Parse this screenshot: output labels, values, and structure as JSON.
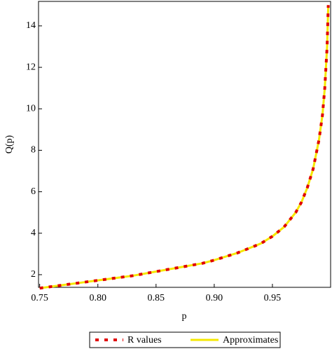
{
  "chart_data": {
    "type": "line",
    "x_label": "p",
    "y_label": "Q(p)",
    "x": [
      0.75,
      0.77,
      0.79,
      0.81,
      0.83,
      0.85,
      0.87,
      0.89,
      0.9,
      0.92,
      0.94,
      0.95,
      0.96,
      0.97,
      0.975,
      0.98,
      0.985,
      0.99,
      0.993,
      0.995,
      0.997,
      0.998
    ],
    "series": [
      {
        "name": "R values",
        "color": "#e00000",
        "dash": true,
        "values": [
          1.35,
          1.5,
          1.65,
          1.8,
          1.95,
          2.15,
          2.35,
          2.55,
          2.7,
          3.05,
          3.5,
          3.85,
          4.3,
          5.0,
          5.5,
          6.2,
          7.1,
          8.5,
          9.7,
          11.0,
          13.0,
          15.0
        ]
      },
      {
        "name": "Approximates",
        "color": "#f5e800",
        "dash": false,
        "values": [
          1.35,
          1.5,
          1.65,
          1.8,
          1.95,
          2.15,
          2.35,
          2.55,
          2.7,
          3.05,
          3.5,
          3.85,
          4.3,
          5.0,
          5.5,
          6.2,
          7.1,
          8.5,
          9.7,
          11.0,
          13.0,
          15.0
        ]
      }
    ],
    "xlim": [
      0.749,
      1.0
    ],
    "ylim": [
      1.39,
      15.18
    ],
    "xticks": [
      0.75,
      {
        "value": 0.8,
        "label": "0.80"
      },
      0.85,
      {
        "value": 0.9,
        "label": "0.90"
      },
      0.95
    ],
    "yticks": [
      2,
      4,
      6,
      8,
      10,
      12,
      14
    ],
    "legend": "bottom"
  }
}
